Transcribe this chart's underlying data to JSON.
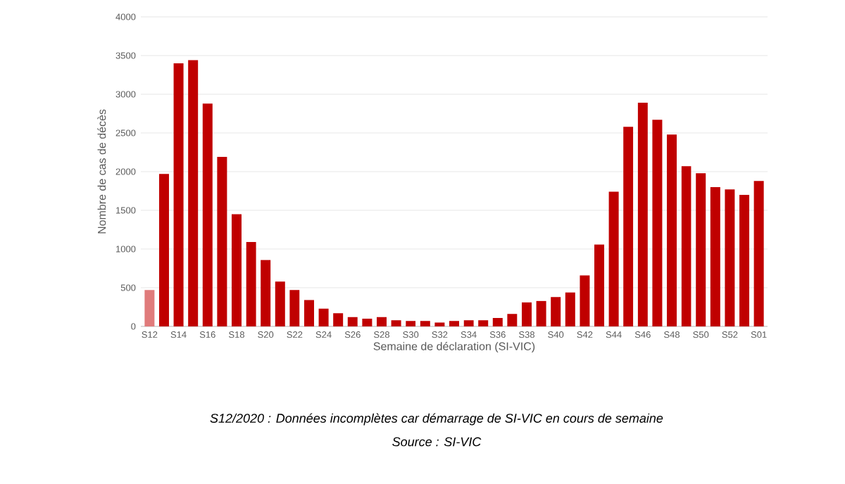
{
  "chart_data": {
    "type": "bar",
    "xlabel": "Semaine de déclaration (SI-VIC)",
    "ylabel": "Nombre de cas de décès",
    "categories": [
      "S12",
      null,
      "S14",
      null,
      "S16",
      null,
      "S18",
      null,
      "S20",
      null,
      "S22",
      null,
      "S24",
      null,
      "S26",
      null,
      "S28",
      null,
      "S30",
      null,
      "S32",
      null,
      "S34",
      null,
      "S36",
      null,
      "S38",
      null,
      "S40",
      null,
      "S42",
      null,
      "S44",
      null,
      "S46",
      null,
      "S48",
      null,
      "S50",
      null,
      "S52",
      null,
      "S01"
    ],
    "values": [
      470,
      1970,
      3400,
      3440,
      2880,
      2190,
      1450,
      1090,
      860,
      580,
      470,
      340,
      230,
      170,
      120,
      100,
      120,
      80,
      70,
      70,
      50,
      70,
      80,
      80,
      110,
      160,
      310,
      330,
      380,
      440,
      660,
      1060,
      1740,
      2580,
      2890,
      2670,
      2480,
      2070,
      1980,
      1800,
      1770,
      1700,
      1880
    ],
    "colors": [
      "#e07b7b",
      "#c00000",
      "#c00000",
      "#c00000",
      "#c00000",
      "#c00000",
      "#c00000",
      "#c00000",
      "#c00000",
      "#c00000",
      "#c00000",
      "#c00000",
      "#c00000",
      "#c00000",
      "#c00000",
      "#c00000",
      "#c00000",
      "#c00000",
      "#c00000",
      "#c00000",
      "#c00000",
      "#c00000",
      "#c00000",
      "#c00000",
      "#c00000",
      "#c00000",
      "#c00000",
      "#c00000",
      "#c00000",
      "#c00000",
      "#c00000",
      "#c00000",
      "#c00000",
      "#c00000",
      "#c00000",
      "#c00000",
      "#c00000",
      "#c00000",
      "#c00000",
      "#c00000",
      "#c00000",
      "#c00000",
      "#c00000"
    ],
    "ylim": [
      0,
      4000
    ],
    "yticks": [
      0,
      500,
      1000,
      1500,
      2000,
      2500,
      3000,
      3500,
      4000
    ],
    "grid": "y",
    "annotations": [
      "S12/2020 : Données incomplètes car démarrage de SI-VIC en cours de semaine",
      "Source : SI-VIC"
    ]
  }
}
